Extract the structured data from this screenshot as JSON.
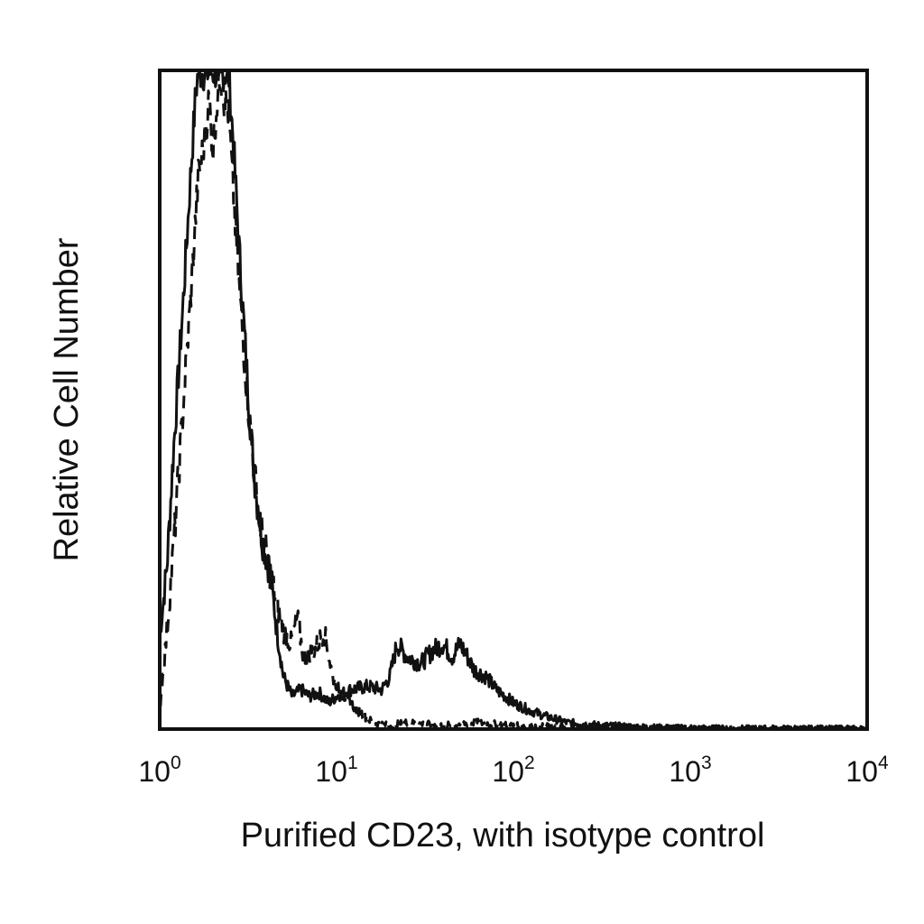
{
  "chart_data": {
    "type": "line",
    "title": "",
    "xlabel": "Purified CD23, with isotype control",
    "ylabel": "Relative Cell Number",
    "x_scale": "log",
    "xlim": [
      1,
      10000
    ],
    "ylim": [
      0,
      100
    ],
    "grid": false,
    "legend": "none",
    "x_ticks": [
      {
        "base": "10",
        "exp": "0",
        "value": 1
      },
      {
        "base": "10",
        "exp": "1",
        "value": 10
      },
      {
        "base": "10",
        "exp": "2",
        "value": 100
      },
      {
        "base": "10",
        "exp": "3",
        "value": 1000
      },
      {
        "base": "10",
        "exp": "4",
        "value": 10000
      }
    ],
    "series": [
      {
        "style": "solid",
        "color": "#111111",
        "points": [
          [
            1.0,
            14
          ],
          [
            1.1,
            25
          ],
          [
            1.2,
            43
          ],
          [
            1.35,
            64
          ],
          [
            1.5,
            85
          ],
          [
            1.6,
            97
          ],
          [
            1.65,
            100
          ],
          [
            2.0,
            100
          ],
          [
            2.3,
            100
          ],
          [
            2.45,
            100
          ],
          [
            2.6,
            90
          ],
          [
            2.8,
            74
          ],
          [
            3.1,
            55
          ],
          [
            3.3,
            44
          ],
          [
            3.5,
            36
          ],
          [
            3.8,
            29
          ],
          [
            4.2,
            24
          ],
          [
            4.6,
            15
          ],
          [
            5.0,
            8
          ],
          [
            5.6,
            5
          ],
          [
            6.3,
            6
          ],
          [
            7.0,
            5
          ],
          [
            8.0,
            5.5
          ],
          [
            9.0,
            4
          ],
          [
            10.0,
            5
          ],
          [
            12.0,
            6
          ],
          [
            15.0,
            6.5
          ],
          [
            18.0,
            6
          ],
          [
            20.0,
            8
          ],
          [
            22.0,
            13
          ],
          [
            25.0,
            11
          ],
          [
            30.0,
            10
          ],
          [
            35.0,
            12
          ],
          [
            40.0,
            13
          ],
          [
            45.0,
            11
          ],
          [
            50.0,
            13
          ],
          [
            55.0,
            11
          ],
          [
            60.0,
            9
          ],
          [
            70.0,
            8
          ],
          [
            80.0,
            6
          ],
          [
            90.0,
            5
          ],
          [
            100.0,
            4
          ],
          [
            120.0,
            3
          ],
          [
            150.0,
            2
          ],
          [
            200.0,
            1
          ],
          [
            300.0,
            0.6
          ],
          [
            500.0,
            0.3
          ],
          [
            1000.0,
            0.1
          ],
          [
            2000.0,
            0.05
          ],
          [
            10000.0,
            0
          ]
        ]
      },
      {
        "style": "dashed",
        "color": "#111111",
        "points": [
          [
            1.0,
            3
          ],
          [
            1.1,
            15
          ],
          [
            1.2,
            28
          ],
          [
            1.35,
            48
          ],
          [
            1.5,
            66
          ],
          [
            1.65,
            84
          ],
          [
            1.8,
            90
          ],
          [
            1.9,
            96
          ],
          [
            2.0,
            88
          ],
          [
            2.1,
            95
          ],
          [
            2.2,
            100
          ],
          [
            2.3,
            96
          ],
          [
            2.45,
            94
          ],
          [
            2.6,
            82
          ],
          [
            2.8,
            68
          ],
          [
            3.1,
            52
          ],
          [
            3.4,
            40
          ],
          [
            3.7,
            31
          ],
          [
            4.2,
            24
          ],
          [
            4.6,
            19
          ],
          [
            5.0,
            15
          ],
          [
            5.5,
            13
          ],
          [
            6.0,
            17
          ],
          [
            6.5,
            11
          ],
          [
            7.5,
            12
          ],
          [
            8.5,
            15
          ],
          [
            9.5,
            8
          ],
          [
            11.0,
            5
          ],
          [
            13.0,
            3
          ],
          [
            16.0,
            1
          ],
          [
            20.0,
            0.5
          ],
          [
            25.0,
            1
          ],
          [
            30.0,
            0.8
          ],
          [
            40.0,
            0.5
          ],
          [
            60.0,
            1
          ],
          [
            100.0,
            0.5
          ],
          [
            200.0,
            0.3
          ],
          [
            1000.0,
            0.1
          ],
          [
            10000.0,
            0
          ]
        ]
      }
    ]
  }
}
